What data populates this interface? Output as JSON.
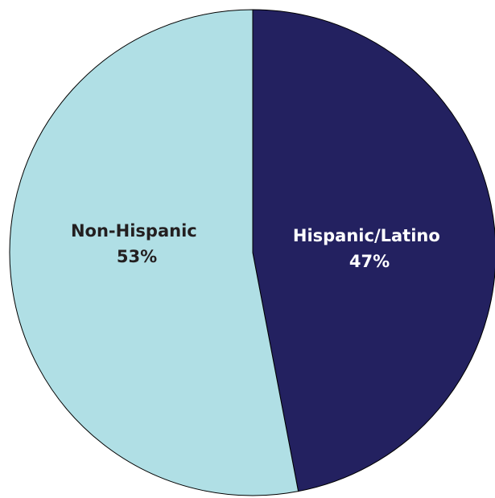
{
  "chart_data": {
    "type": "pie",
    "slices": [
      {
        "label": "Hispanic/Latino",
        "value": 47,
        "value_label": "47%",
        "color": "#232160",
        "text_color": "#ffffff"
      },
      {
        "label": "Non-Hispanic",
        "value": 53,
        "value_label": "53%",
        "color": "#b0dfe5",
        "text_color": "#231f20"
      }
    ],
    "start_angle_deg": 0,
    "direction": "clockwise",
    "legend": "none",
    "edge_color": "#000000"
  }
}
